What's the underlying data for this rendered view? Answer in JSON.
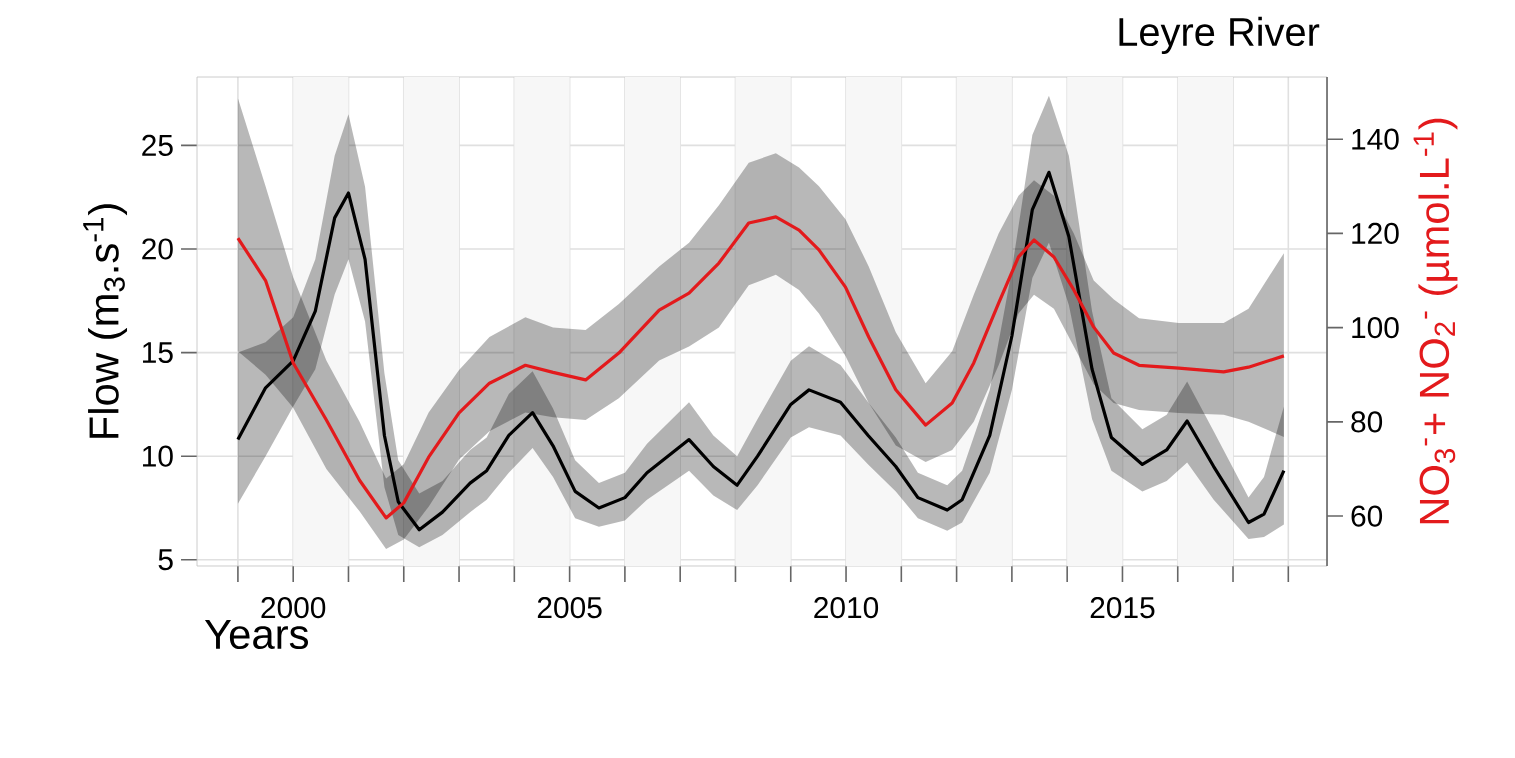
{
  "chart_data": {
    "type": "line",
    "title": "Leyre River",
    "xlabel": "Years",
    "ylabel": "Flow (m$_{3}$.s$^{-1}$)",
    "y2label": "NO$_{3}$$^{-}$+ NO$_{2}$$^{-}$ (µmol.L$^{-1}$)",
    "xlim": [
      1998.26,
      2018.7
    ],
    "ylim": [
      4.7,
      28.3
    ],
    "y2lim": [
      49.4,
      153.2
    ],
    "xticks": [
      {
        "value": 1999,
        "label": null
      },
      2000,
      {
        "value": 2001,
        "label": null
      },
      {
        "value": 2002,
        "label": null
      },
      {
        "value": 2003,
        "label": null
      },
      {
        "value": 2004,
        "label": null
      },
      2005,
      {
        "value": 2006,
        "label": null
      },
      {
        "value": 2007,
        "label": null
      },
      {
        "value": 2008,
        "label": null
      },
      {
        "value": 2009,
        "label": null
      },
      2010,
      {
        "value": 2011,
        "label": null
      },
      {
        "value": 2012,
        "label": null
      },
      {
        "value": 2013,
        "label": null
      },
      {
        "value": 2014,
        "label": null
      },
      2015,
      {
        "value": 2016,
        "label": null
      },
      {
        "value": 2017,
        "label": null
      },
      {
        "value": 2018,
        "label": null
      }
    ],
    "yticks": [
      5,
      10,
      15,
      20,
      25
    ],
    "y2ticks": [
      60,
      80,
      100,
      120,
      140
    ],
    "grid": true,
    "bands": [
      {
        "axis": "x",
        "from": 2000,
        "to": 2001,
        "color": "#f7f7f7"
      },
      {
        "axis": "x",
        "from": 2002,
        "to": 2003,
        "color": "#f7f7f7"
      },
      {
        "axis": "x",
        "from": 2004,
        "to": 2005,
        "color": "#f7f7f7"
      },
      {
        "axis": "x",
        "from": 2006,
        "to": 2007,
        "color": "#f7f7f7"
      },
      {
        "axis": "x",
        "from": 2008,
        "to": 2009,
        "color": "#f7f7f7"
      },
      {
        "axis": "x",
        "from": 2010,
        "to": 2011,
        "color": "#f7f7f7"
      },
      {
        "axis": "x",
        "from": 2012,
        "to": 2013,
        "color": "#f7f7f7"
      },
      {
        "axis": "x",
        "from": 2014,
        "to": 2015,
        "color": "#f7f7f7"
      },
      {
        "axis": "x",
        "from": 2016,
        "to": 2017,
        "color": "#f7f7f7"
      }
    ],
    "series": [
      {
        "color": "#000000",
        "x": [
          1999.0,
          1999.5,
          2000.0,
          2000.4,
          2000.75,
          2001.0,
          2001.3,
          2001.65,
          2001.9,
          2002.28,
          2002.7,
          2003.2,
          2003.5,
          2003.9,
          2004.33,
          2004.7,
          2005.1,
          2005.53,
          2006.0,
          2006.4,
          2007.16,
          2007.6,
          2008.03,
          2008.4,
          2009.0,
          2009.33,
          2009.9,
          2010.4,
          2010.9,
          2011.3,
          2011.83,
          2012.1,
          2012.6,
          2013.0,
          2013.37,
          2013.67,
          2014.03,
          2014.45,
          2014.8,
          2015.36,
          2015.8,
          2016.17,
          2016.65,
          2017.28,
          2017.56,
          2017.92
        ],
        "values": [
          10.8,
          13.3,
          14.6,
          17.0,
          21.5,
          22.7,
          19.5,
          11.0,
          7.8,
          6.45,
          7.3,
          8.7,
          9.3,
          11.0,
          12.1,
          10.5,
          8.3,
          7.5,
          8.0,
          9.2,
          10.8,
          9.5,
          8.6,
          10.0,
          12.5,
          13.2,
          12.6,
          11.0,
          9.5,
          8.0,
          7.4,
          7.9,
          11.0,
          15.8,
          21.9,
          23.7,
          20.6,
          14.2,
          10.9,
          9.6,
          10.3,
          11.7,
          9.5,
          6.8,
          7.2,
          9.3
        ],
        "lower": [
          7.7,
          10.0,
          12.4,
          14.2,
          17.8,
          19.5,
          16.5,
          8.5,
          6.2,
          5.6,
          6.2,
          7.3,
          7.9,
          9.2,
          10.4,
          9.0,
          7.0,
          6.6,
          6.9,
          7.9,
          9.3,
          8.1,
          7.4,
          8.6,
          10.9,
          11.4,
          11.0,
          9.6,
          8.3,
          7.0,
          6.4,
          6.8,
          9.2,
          13.2,
          18.6,
          20.3,
          17.3,
          11.8,
          9.3,
          8.3,
          8.8,
          9.7,
          7.9,
          6.0,
          6.1,
          6.7
        ],
        "upper": [
          15.0,
          15.5,
          16.7,
          19.5,
          24.5,
          26.5,
          23.0,
          14.0,
          9.8,
          8.2,
          8.8,
          10.3,
          10.9,
          13.0,
          14.1,
          12.3,
          9.8,
          8.7,
          9.2,
          10.6,
          12.6,
          11.0,
          10.0,
          11.8,
          14.6,
          15.3,
          14.4,
          12.6,
          10.9,
          9.2,
          8.6,
          9.3,
          13.2,
          19.0,
          25.5,
          27.4,
          24.5,
          17.0,
          12.8,
          11.3,
          12.0,
          13.6,
          11.2,
          8.0,
          9.0,
          12.4
        ]
      },
      {
        "color": "#e31a1c",
        "axis": "y2",
        "x": [
          1999.0,
          1999.5,
          2000.0,
          2000.6,
          2001.2,
          2001.68,
          2002.0,
          2002.45,
          2003.0,
          2003.55,
          2004.2,
          2004.7,
          2005.29,
          2005.89,
          2006.62,
          2007.16,
          2007.7,
          2008.24,
          2008.73,
          2009.15,
          2009.51,
          2009.99,
          2010.41,
          2010.9,
          2011.44,
          2011.92,
          2012.31,
          2012.76,
          2013.12,
          2013.4,
          2013.76,
          2014.12,
          2014.48,
          2014.84,
          2015.3,
          2016.02,
          2016.83,
          2017.28,
          2017.92
        ],
        "values": [
          119,
          110,
          92.5,
          80.4,
          67.6,
          59.6,
          62.8,
          72.5,
          81.9,
          88.2,
          92,
          90.5,
          88.9,
          94.6,
          103.7,
          107.3,
          113.7,
          122.2,
          123.5,
          120.7,
          116.5,
          108.6,
          98,
          86.8,
          79.3,
          84,
          92.5,
          105.2,
          115,
          118.6,
          115,
          108,
          100.1,
          94.6,
          92,
          91.4,
          90.6,
          91.6,
          94
        ],
        "lower": [
          95,
          90,
          83,
          70,
          61,
          53,
          55,
          62,
          72,
          78,
          82,
          81,
          80.4,
          85,
          93,
          96,
          100,
          109,
          111.2,
          108,
          103,
          94,
          84,
          75,
          71.5,
          74,
          80,
          92,
          103,
          107,
          104,
          96,
          88,
          84,
          82.5,
          81.9,
          81.5,
          80,
          76.8
        ],
        "upper": [
          148.7,
          130,
          110.7,
          93,
          80,
          68,
          71,
          82,
          91,
          98,
          102.2,
          100,
          99.5,
          105,
          113,
          118,
          126,
          135,
          137,
          134,
          130,
          123,
          113,
          99,
          88.2,
          95,
          107,
          120,
          128,
          131.3,
          128,
          120,
          110,
          106,
          102,
          101,
          101,
          104,
          115.8
        ]
      }
    ]
  }
}
